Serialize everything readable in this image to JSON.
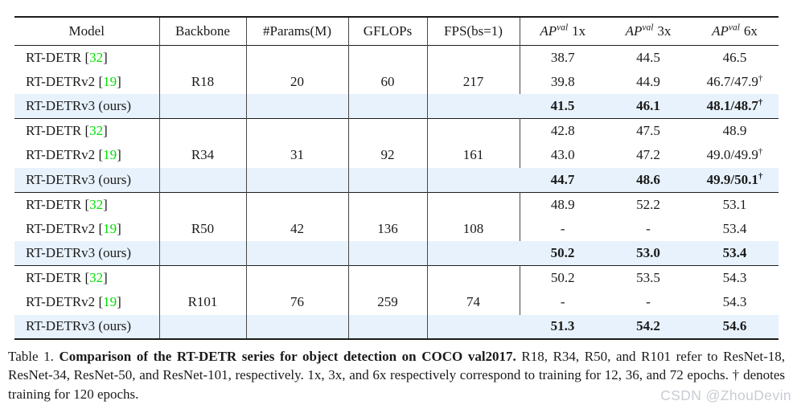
{
  "table": {
    "headers": [
      "Model",
      "Backbone",
      "#Params(M)",
      "GFLOPs",
      "FPS(bs=1)"
    ],
    "ap_headers": [
      {
        "ap": "AP",
        "sup": "val",
        "term": "1x"
      },
      {
        "ap": "AP",
        "sup": "val",
        "term": "3x"
      },
      {
        "ap": "AP",
        "sup": "val",
        "term": "6x"
      }
    ],
    "bracket_open": "[",
    "bracket_close": "]",
    "dagger_symbol": "†",
    "groups": [
      {
        "backbone": "R18",
        "params": "20",
        "gflops": "60",
        "fps": "217",
        "rows": [
          {
            "model": "RT-DETR",
            "cite": "32",
            "ap": [
              "38.7",
              "44.5",
              "46.5"
            ],
            "dagger": false,
            "highlight": false,
            "bold": false
          },
          {
            "model": "RT-DETRv2",
            "cite": "19",
            "ap": [
              "39.8",
              "44.9",
              "46.7/47.9"
            ],
            "dagger": true,
            "highlight": false,
            "bold": false
          },
          {
            "model": "RT-DETRv3 (ours)",
            "cite": null,
            "ap": [
              "41.5",
              "46.1",
              "48.1/48.7"
            ],
            "dagger": true,
            "highlight": true,
            "bold": true
          }
        ]
      },
      {
        "backbone": "R34",
        "params": "31",
        "gflops": "92",
        "fps": "161",
        "rows": [
          {
            "model": "RT-DETR",
            "cite": "32",
            "ap": [
              "42.8",
              "47.5",
              "48.9"
            ],
            "dagger": false,
            "highlight": false,
            "bold": false
          },
          {
            "model": "RT-DETRv2",
            "cite": "19",
            "ap": [
              "43.0",
              "47.2",
              "49.0/49.9"
            ],
            "dagger": true,
            "highlight": false,
            "bold": false
          },
          {
            "model": "RT-DETRv3 (ours)",
            "cite": null,
            "ap": [
              "44.7",
              "48.6",
              "49.9/50.1"
            ],
            "dagger": true,
            "highlight": true,
            "bold": true
          }
        ]
      },
      {
        "backbone": "R50",
        "params": "42",
        "gflops": "136",
        "fps": "108",
        "rows": [
          {
            "model": "RT-DETR",
            "cite": "32",
            "ap": [
              "48.9",
              "52.2",
              "53.1"
            ],
            "dagger": false,
            "highlight": false,
            "bold": false
          },
          {
            "model": "RT-DETRv2",
            "cite": "19",
            "ap": [
              "-",
              "-",
              "53.4"
            ],
            "dagger": false,
            "highlight": false,
            "bold": false
          },
          {
            "model": "RT-DETRv3 (ours)",
            "cite": null,
            "ap": [
              "50.2",
              "53.0",
              "53.4"
            ],
            "dagger": false,
            "highlight": true,
            "bold": true
          }
        ]
      },
      {
        "backbone": "R101",
        "params": "76",
        "gflops": "259",
        "fps": "74",
        "rows": [
          {
            "model": "RT-DETR",
            "cite": "32",
            "ap": [
              "50.2",
              "53.5",
              "54.3"
            ],
            "dagger": false,
            "highlight": false,
            "bold": false
          },
          {
            "model": "RT-DETRv2",
            "cite": "19",
            "ap": [
              "-",
              "-",
              "54.3"
            ],
            "dagger": false,
            "highlight": false,
            "bold": false
          },
          {
            "model": "RT-DETRv3 (ours)",
            "cite": null,
            "ap": [
              "51.3",
              "54.2",
              "54.6"
            ],
            "dagger": false,
            "highlight": true,
            "bold": true
          }
        ]
      }
    ]
  },
  "caption": {
    "label": "Table 1.",
    "bold_part": "Comparison of the RT-DETR series for object detection on COCO val2017.",
    "rest": "R18, R34, R50, and R101 refer to ResNet-18, ResNet-34, ResNet-50, and ResNet-101, respectively. 1x, 3x, and 6x respectively correspond to training for 12, 36, and 72 epochs. † denotes training for 120 epochs."
  },
  "watermark": "CSDN @ZhouDevin",
  "colors": {
    "citation_green": "#00e000",
    "highlight_blue": "#e8f2fc",
    "watermark_gray": "#c9ccd3"
  }
}
